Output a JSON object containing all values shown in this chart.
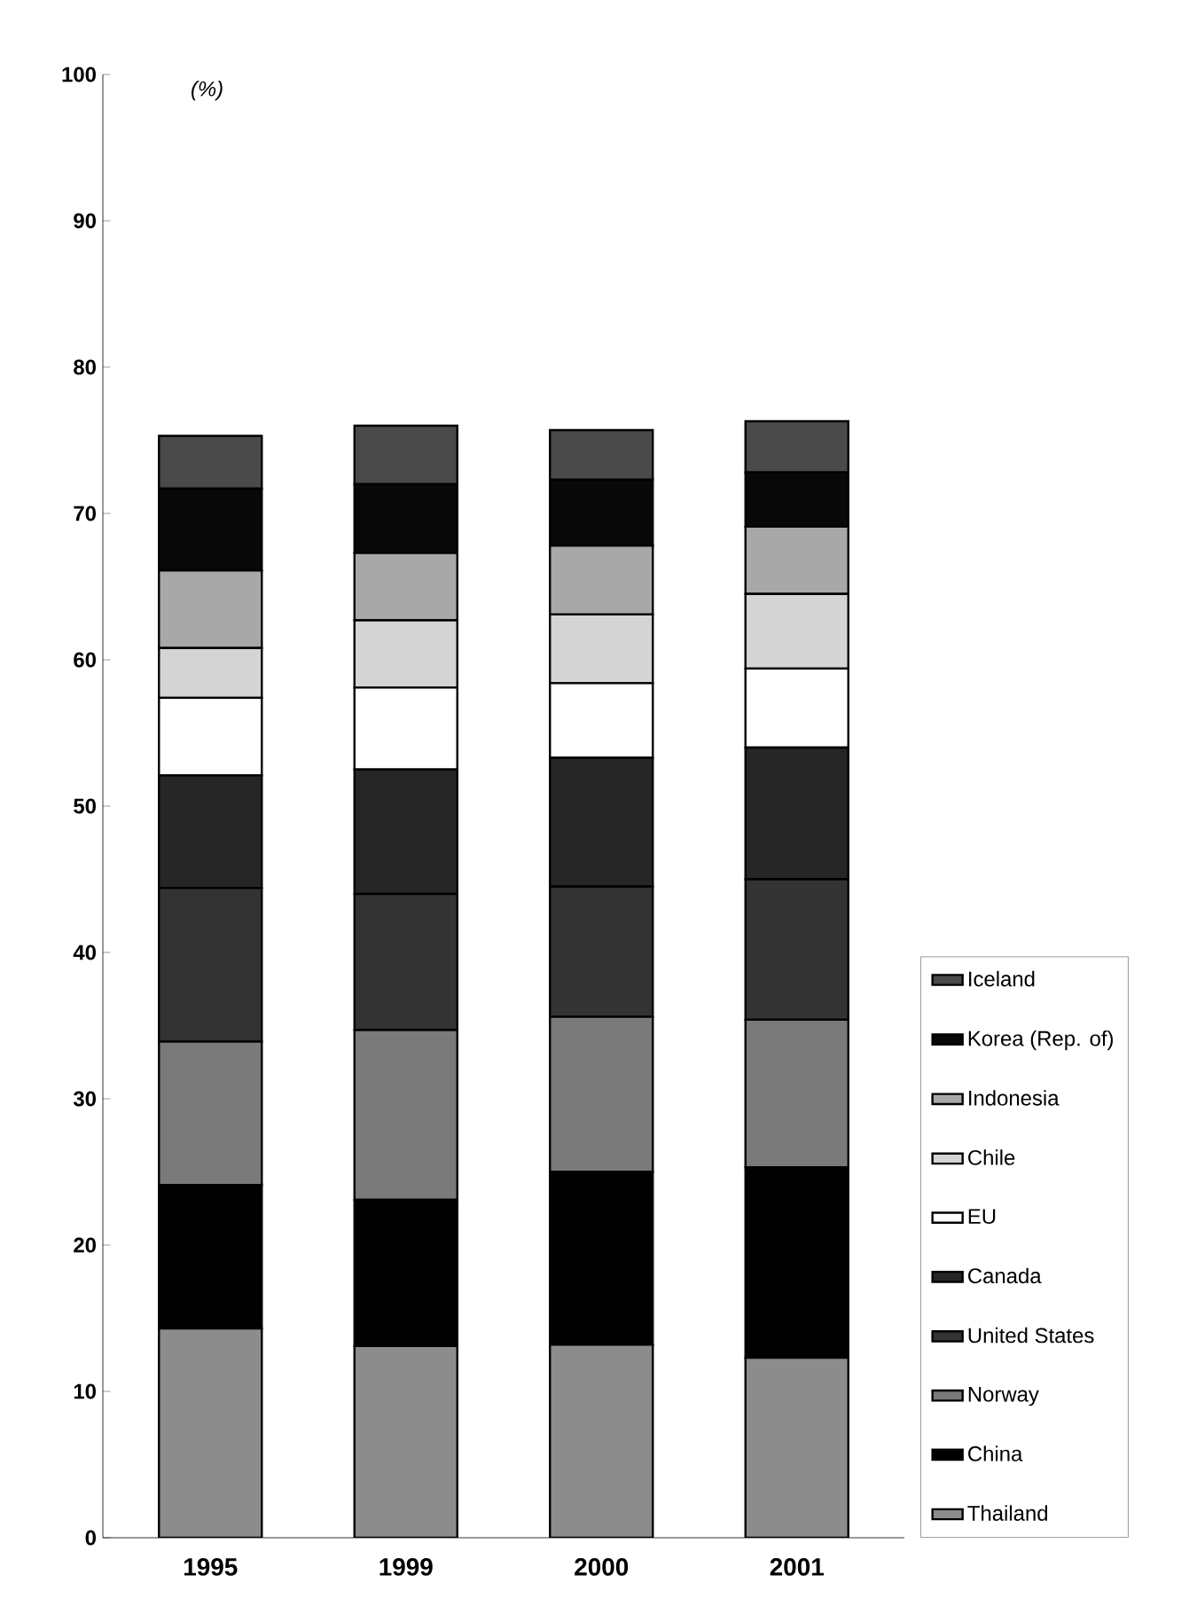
{
  "chart_data": {
    "type": "bar",
    "stacked": true,
    "ylabel": "(%)",
    "categories": [
      "1995",
      "1999",
      "2000",
      "2001"
    ],
    "ylim": [
      0,
      100
    ],
    "yticks": [
      0,
      10,
      20,
      30,
      40,
      50,
      60,
      70,
      80,
      90,
      100
    ],
    "legend": "right",
    "grid": false,
    "series": [
      {
        "name": "Thailand",
        "color": "#8c8c8c",
        "values": [
          14.3,
          13.1,
          13.2,
          12.3
        ]
      },
      {
        "name": "China",
        "color": "#000000",
        "values": [
          9.8,
          10.0,
          11.8,
          13.0
        ]
      },
      {
        "name": "Norway",
        "color": "#7a7a7a",
        "values": [
          9.8,
          11.6,
          10.6,
          10.1
        ]
      },
      {
        "name": "United States",
        "color": "#333333",
        "values": [
          10.5,
          9.3,
          8.9,
          9.6
        ]
      },
      {
        "name": "Canada",
        "color": "#262626",
        "values": [
          7.7,
          8.5,
          8.8,
          9.0
        ]
      },
      {
        "name": "EU",
        "color": "#ffffff",
        "values": [
          5.3,
          5.6,
          5.1,
          5.4
        ]
      },
      {
        "name": "Chile",
        "color": "#d4d4d4",
        "values": [
          3.4,
          4.6,
          4.7,
          5.1
        ]
      },
      {
        "name": "Indonesia",
        "color": "#a8a8a8",
        "values": [
          5.3,
          4.6,
          4.7,
          4.6
        ]
      },
      {
        "name": "Korea (Rep. of)",
        "color": "#080808",
        "values": [
          5.6,
          4.7,
          4.5,
          3.7
        ]
      },
      {
        "name": "Iceland",
        "color": "#4a4a4a",
        "values": [
          3.6,
          4.0,
          3.4,
          3.5
        ]
      }
    ]
  }
}
